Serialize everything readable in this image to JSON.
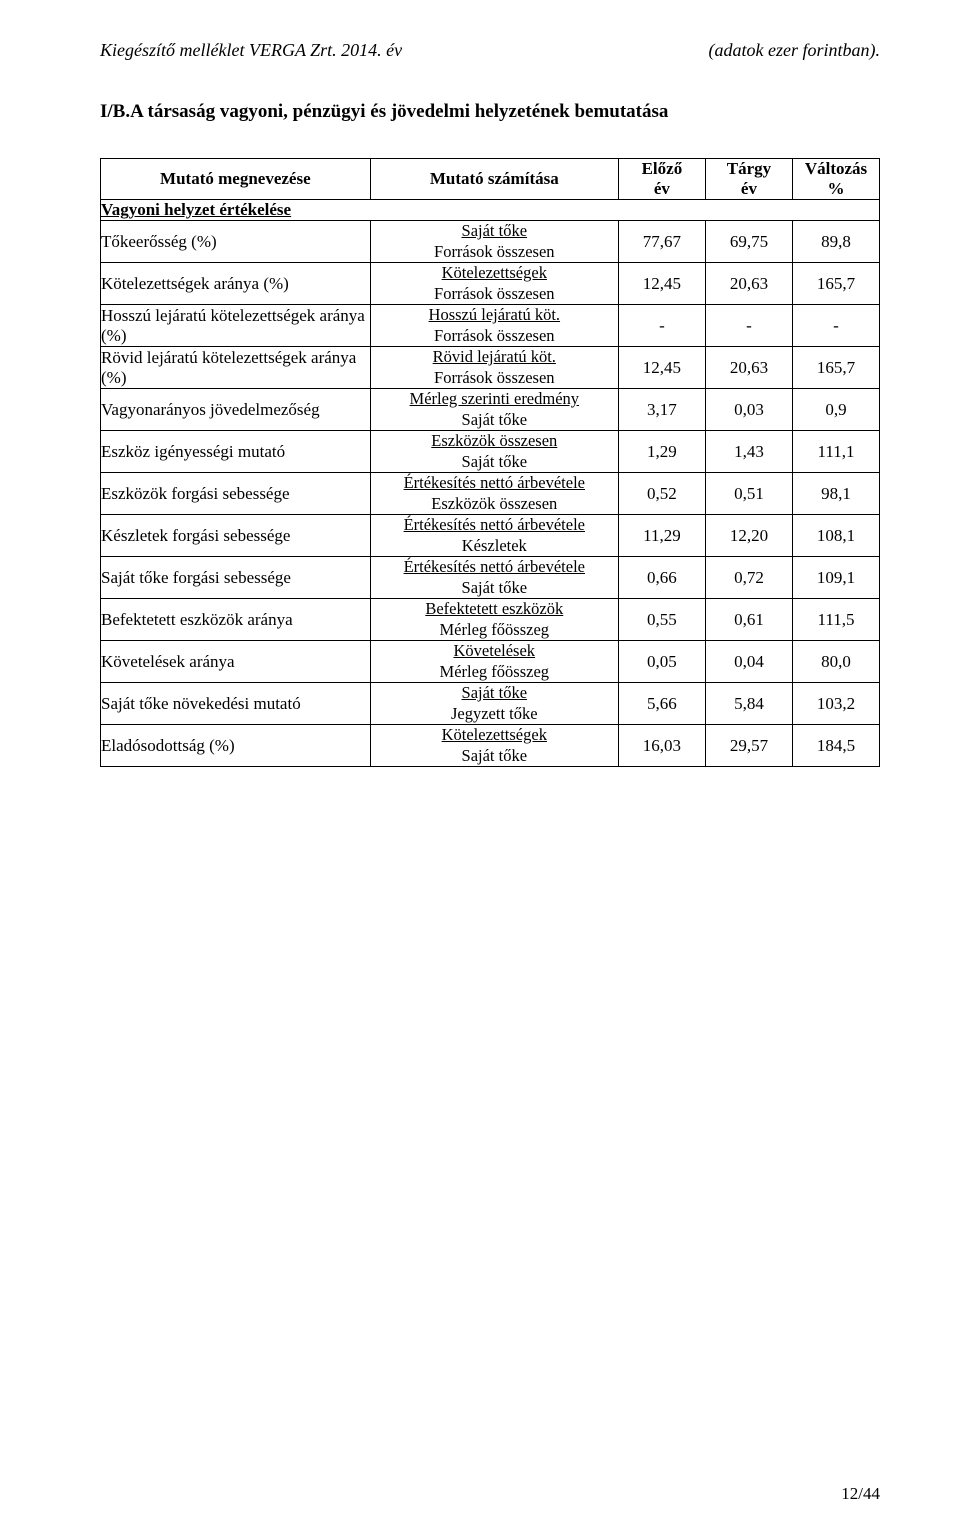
{
  "header": {
    "left": "Kiegészítő melléklet VERGA Zrt. 2014. év",
    "right": "(adatok ezer forintban)."
  },
  "heading": "I/B.A társaság vagyoni, pénzügyi és jövedelmi helyzetének bemutatása",
  "columns": {
    "c1": "Mutató megnevezése",
    "c2": "Mutató számítása",
    "c3_top": "Előző",
    "c3_bot": "év",
    "c4_top": "Tárgy",
    "c4_bot": "év",
    "c5_top": "Változás",
    "c5_bot": "%"
  },
  "section1": "Vagyoni helyzet értékelése",
  "rows": [
    {
      "name": "Tőkeerősség (%)",
      "num": "Saját tőke",
      "den": "Források összesen",
      "prev": "77,67",
      "curr": "69,75",
      "chg": "89,8"
    },
    {
      "name": "Kötelezettségek aránya (%)",
      "num": "Kötelezettségek",
      "den": "Források összesen",
      "prev": "12,45",
      "curr": "20,63",
      "chg": "165,7"
    },
    {
      "name": "Hosszú lejáratú kötelezettségek aránya (%)",
      "num": "Hosszú lejáratú köt.",
      "den": "Források összesen",
      "prev": "-",
      "curr": "-",
      "chg": "-"
    },
    {
      "name": "Rövid lejáratú kötelezettségek aránya (%)",
      "num": "Rövid lejáratú köt.",
      "den": "Források összesen",
      "prev": "12,45",
      "curr": "20,63",
      "chg": "165,7"
    },
    {
      "name": "Vagyonarányos jövedelmezőség",
      "num": "Mérleg szerinti eredmény",
      "den": "Saját tőke",
      "prev": "3,17",
      "curr": "0,03",
      "chg": "0,9"
    },
    {
      "name": "Eszköz igényességi mutató",
      "num": "Eszközök összesen",
      "den": "Saját tőke",
      "prev": "1,29",
      "curr": "1,43",
      "chg": "111,1"
    },
    {
      "name": "Eszközök forgási sebessége",
      "num": "Értékesítés nettó árbevétele",
      "den": "Eszközök összesen",
      "prev": "0,52",
      "curr": "0,51",
      "chg": "98,1"
    },
    {
      "name": "Készletek forgási sebessége",
      "num": "Értékesítés nettó árbevétele",
      "den": "Készletek",
      "prev": "11,29",
      "curr": "12,20",
      "chg": "108,1"
    },
    {
      "name": "Saját tőke forgási sebessége",
      "num": "Értékesítés nettó árbevétele",
      "den": "Saját tőke",
      "prev": "0,66",
      "curr": "0,72",
      "chg": "109,1"
    },
    {
      "name": "Befektetett eszközök aránya",
      "num": "Befektetett eszközök",
      "den": "Mérleg főösszeg",
      "prev": "0,55",
      "curr": "0,61",
      "chg": "111,5"
    },
    {
      "name": "Követelések aránya",
      "num": "Követelések",
      "den": "Mérleg főösszeg",
      "prev": "0,05",
      "curr": "0,04",
      "chg": "80,0"
    },
    {
      "name": "Saját tőke növekedési mutató",
      "num": "Saját tőke",
      "den": "Jegyzett tőke",
      "prev": "5,66",
      "curr": "5,84",
      "chg": "103,2"
    },
    {
      "name": "Eladósodottság (%)",
      "num": "Kötelezettségek",
      "den": "Saját tőke",
      "prev": "16,03",
      "curr": "29,57",
      "chg": "184,5"
    }
  ],
  "footer": "12/44"
}
